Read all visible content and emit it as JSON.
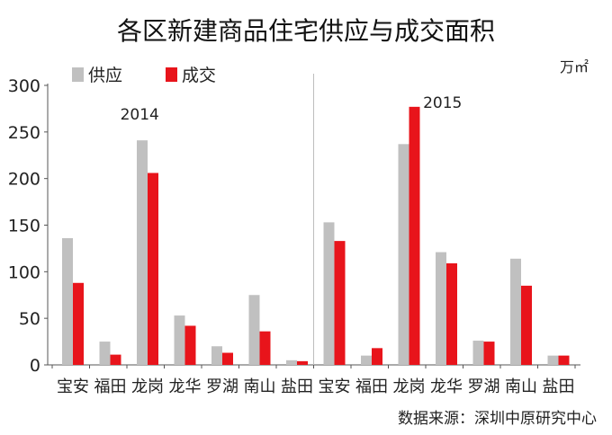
{
  "chart_data": {
    "type": "bar",
    "title": "各区新建商品住宅供应与成交面积",
    "unit": "万㎡",
    "source": "数据来源：深圳中原研究中心",
    "ylim": [
      0,
      300
    ],
    "yticks": [
      0,
      50,
      100,
      150,
      200,
      250,
      300
    ],
    "grid": false,
    "legend_position": "top-left",
    "groups": [
      {
        "label": "2014",
        "categories": [
          "宝安",
          "福田",
          "龙岗",
          "龙华",
          "罗湖",
          "南山",
          "盐田"
        ],
        "series": [
          {
            "name": "供应",
            "values": [
              136,
              25,
              241,
              53,
              20,
              75,
              5
            ]
          },
          {
            "name": "成交",
            "values": [
              88,
              11,
              206,
              42,
              13,
              36,
              4
            ]
          }
        ]
      },
      {
        "label": "2015",
        "categories": [
          "宝安",
          "福田",
          "龙岗",
          "龙华",
          "罗湖",
          "南山",
          "盐田"
        ],
        "series": [
          {
            "name": "供应",
            "values": [
              153,
              10,
              237,
              121,
              26,
              114,
              10
            ]
          },
          {
            "name": "成交",
            "values": [
              133,
              18,
              277,
              109,
              25,
              85,
              10
            ]
          }
        ]
      }
    ],
    "colors": {
      "供应": "#c0c0c0",
      "成交": "#e8141b"
    }
  }
}
